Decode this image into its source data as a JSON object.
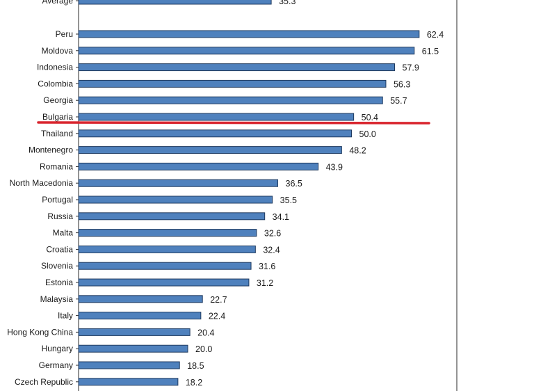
{
  "chart_data": {
    "type": "bar",
    "orientation": "horizontal",
    "title": "",
    "xlabel": "",
    "ylabel": "",
    "xlim": [
      0,
      70
    ],
    "grid": false,
    "legend": "none",
    "categories": [
      "Average",
      "Peru",
      "Moldova",
      "Indonesia",
      "Colombia",
      "Georgia",
      "Bulgaria",
      "Thailand",
      "Montenegro",
      "Romania",
      "North Macedonia",
      "Portugal",
      "Russia",
      "Malta",
      "Croatia",
      "Slovenia",
      "Estonia",
      "Malaysia",
      "Italy",
      "Hong Kong China",
      "Hungary",
      "Germany",
      "Czech Republic"
    ],
    "values": [
      35.3,
      62.4,
      61.5,
      57.9,
      56.3,
      55.7,
      50.4,
      50.0,
      48.2,
      43.9,
      36.5,
      35.5,
      34.1,
      32.6,
      32.4,
      31.6,
      31.2,
      22.7,
      22.4,
      20.4,
      20.0,
      18.5,
      18.2
    ],
    "value_labels": [
      "35.3",
      "62.4",
      "61.5",
      "57.9",
      "56.3",
      "55.7",
      "50.4",
      "50.0",
      "48.2",
      "43.9",
      "36.5",
      "35.5",
      "34.1",
      "32.6",
      "32.4",
      "31.6",
      "31.2",
      "22.7",
      "22.4",
      "20.4",
      "20.0",
      "18.5",
      "18.2"
    ],
    "annotation": {
      "type": "horizontal-line",
      "below_category": "Bulgaria",
      "color": "#d9252e"
    }
  },
  "colors": {
    "bar_fill": "#4f81bd",
    "bar_stroke": "#1f3a5f",
    "axis": "#2a2a2a",
    "highlight_line": "#d9252e"
  }
}
